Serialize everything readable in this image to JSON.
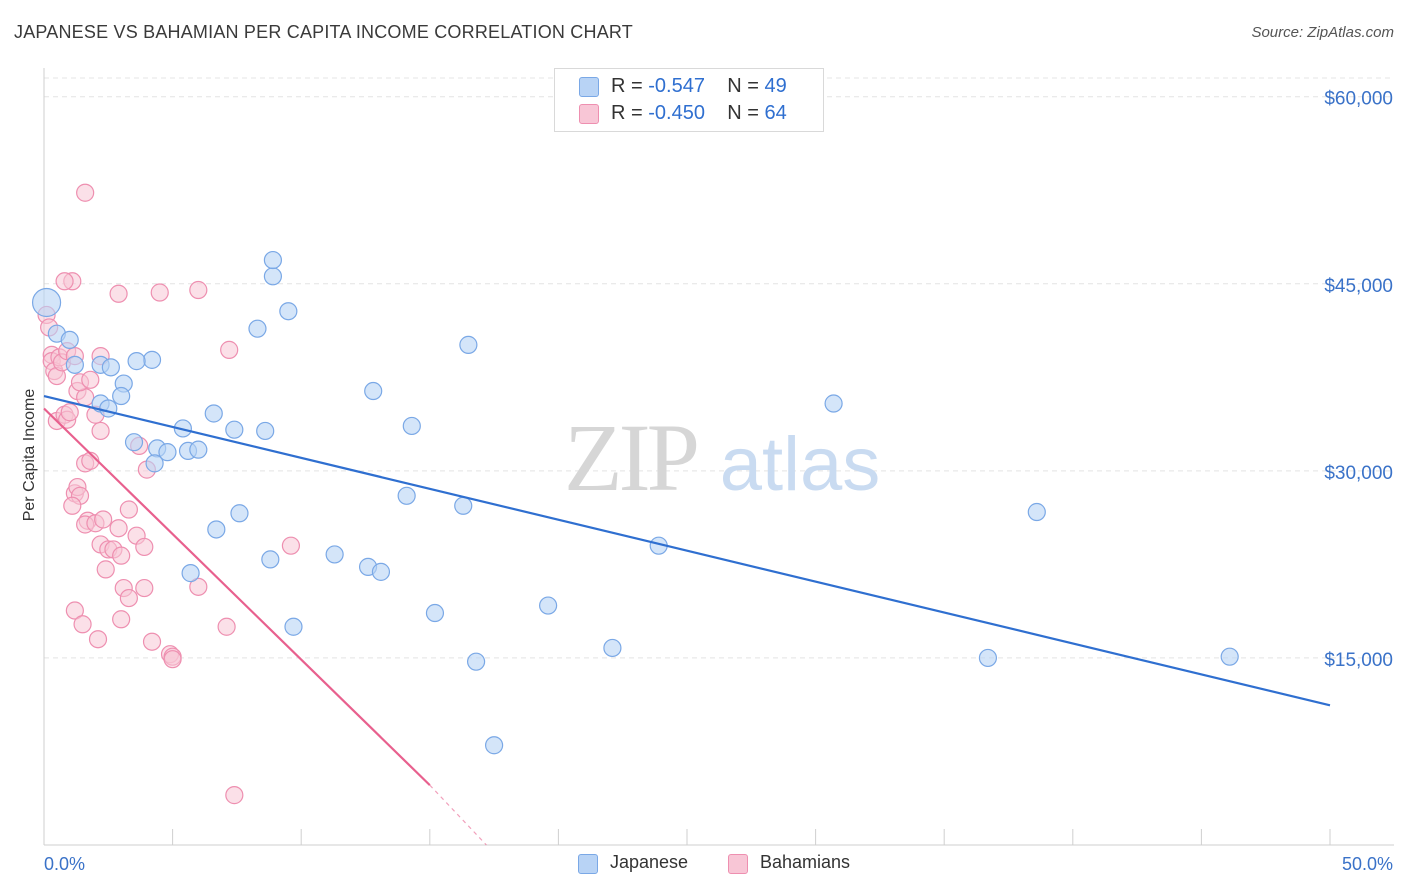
{
  "title": "JAPANESE VS BAHAMIAN PER CAPITA INCOME CORRELATION CHART",
  "source": "Source: ZipAtlas.com",
  "watermark": {
    "zip": "ZIP",
    "atlas": "atlas"
  },
  "legend_top": [
    {
      "r_label": "R =",
      "r_value": "-0.547",
      "n_label": "N =",
      "n_value": "49"
    },
    {
      "r_label": "R =",
      "r_value": "-0.450",
      "n_label": "N =",
      "n_value": "64"
    }
  ],
  "legend_bottom": [
    "Japanese",
    "Bahamians"
  ],
  "colors": {
    "japanese_fill": "#b8d3f5",
    "japanese_stroke": "#7aa8e6",
    "japanese_line": "#2f6fd0",
    "bahamian_fill": "#f8c6d6",
    "bahamian_stroke": "#ee8fb0",
    "bahamian_line": "#e8608e",
    "axis_label": "#3a72c8",
    "grid": "#e4e4e4"
  },
  "chart_data": {
    "type": "scatter",
    "title": "JAPANESE VS BAHAMIAN PER CAPITA INCOME CORRELATION CHART",
    "xlabel": "",
    "ylabel": "Per Capita Income",
    "xlim": [
      0,
      50
    ],
    "ylim": [
      0,
      61500
    ],
    "x_tick_labels": [
      "0.0%",
      "50.0%"
    ],
    "y_ticks": [
      15000,
      30000,
      45000,
      60000
    ],
    "y_tick_labels": [
      "$15,000",
      "$30,000",
      "$45,000",
      "$60,000"
    ],
    "grid": true,
    "legend": "top-center",
    "series": [
      {
        "name": "Japanese",
        "r": -0.547,
        "n": 49,
        "trend": [
          [
            0,
            36000
          ],
          [
            50,
            11200
          ]
        ],
        "points": [
          [
            0.1,
            43500
          ],
          [
            0.5,
            41000
          ],
          [
            1.0,
            40500
          ],
          [
            1.2,
            38500
          ],
          [
            2.2,
            38500
          ],
          [
            2.6,
            38300
          ],
          [
            3.1,
            37000
          ],
          [
            3.0,
            36000
          ],
          [
            2.2,
            35400
          ],
          [
            2.5,
            35000
          ],
          [
            4.2,
            38900
          ],
          [
            3.6,
            38800
          ],
          [
            3.5,
            32300
          ],
          [
            4.4,
            31800
          ],
          [
            4.3,
            30600
          ],
          [
            4.8,
            31500
          ],
          [
            5.6,
            31600
          ],
          [
            6.0,
            31700
          ],
          [
            5.4,
            33400
          ],
          [
            6.6,
            34600
          ],
          [
            7.4,
            33300
          ],
          [
            8.3,
            41400
          ],
          [
            8.9,
            45600
          ],
          [
            8.9,
            46900
          ],
          [
            9.5,
            42800
          ],
          [
            12.8,
            36400
          ],
          [
            14.3,
            33600
          ],
          [
            14.1,
            28000
          ],
          [
            16.5,
            40100
          ],
          [
            16.3,
            27200
          ],
          [
            6.7,
            25300
          ],
          [
            5.7,
            21800
          ],
          [
            7.6,
            26600
          ],
          [
            8.8,
            22900
          ],
          [
            9.7,
            17500
          ],
          [
            11.3,
            23300
          ],
          [
            12.6,
            22300
          ],
          [
            13.1,
            21900
          ],
          [
            15.2,
            18600
          ],
          [
            16.8,
            14700
          ],
          [
            19.6,
            19200
          ],
          [
            22.1,
            15800
          ],
          [
            23.9,
            24000
          ],
          [
            30.7,
            35400
          ],
          [
            36.7,
            15000
          ],
          [
            38.6,
            26700
          ],
          [
            46.1,
            15100
          ],
          [
            17.5,
            8000
          ],
          [
            8.6,
            33200
          ]
        ]
      },
      {
        "name": "Bahamians",
        "r": -0.45,
        "n": 64,
        "trend": [
          [
            0,
            35000
          ],
          [
            15,
            4800
          ]
        ],
        "trend_dashed": [
          [
            15,
            4800
          ],
          [
            17.2,
            0
          ]
        ],
        "points": [
          [
            0.1,
            42500
          ],
          [
            0.2,
            41500
          ],
          [
            0.3,
            39300
          ],
          [
            0.3,
            38800
          ],
          [
            0.4,
            38000
          ],
          [
            0.5,
            37600
          ],
          [
            0.6,
            39100
          ],
          [
            0.7,
            38700
          ],
          [
            0.9,
            39600
          ],
          [
            1.2,
            39200
          ],
          [
            0.5,
            34000
          ],
          [
            0.8,
            34500
          ],
          [
            0.9,
            34100
          ],
          [
            1.0,
            34700
          ],
          [
            1.3,
            36400
          ],
          [
            1.6,
            35900
          ],
          [
            1.4,
            37100
          ],
          [
            1.8,
            37300
          ],
          [
            2.2,
            39200
          ],
          [
            1.6,
            30600
          ],
          [
            1.8,
            30800
          ],
          [
            1.2,
            28200
          ],
          [
            1.3,
            28700
          ],
          [
            1.4,
            28000
          ],
          [
            1.1,
            27200
          ],
          [
            1.7,
            26000
          ],
          [
            1.6,
            25700
          ],
          [
            2.0,
            25800
          ],
          [
            2.3,
            26100
          ],
          [
            2.2,
            24100
          ],
          [
            2.5,
            23700
          ],
          [
            2.7,
            23700
          ],
          [
            2.4,
            22100
          ],
          [
            3.0,
            23200
          ],
          [
            2.9,
            25400
          ],
          [
            3.3,
            26900
          ],
          [
            3.6,
            24800
          ],
          [
            3.9,
            23900
          ],
          [
            1.2,
            18800
          ],
          [
            1.5,
            17700
          ],
          [
            2.1,
            16500
          ],
          [
            3.0,
            18100
          ],
          [
            3.1,
            20600
          ],
          [
            3.3,
            19800
          ],
          [
            3.9,
            20600
          ],
          [
            4.2,
            16300
          ],
          [
            4.9,
            15300
          ],
          [
            5.0,
            15100
          ],
          [
            5.0,
            14900
          ],
          [
            6.0,
            20700
          ],
          [
            7.1,
            17500
          ],
          [
            9.6,
            24000
          ],
          [
            7.2,
            39700
          ],
          [
            6.0,
            44500
          ],
          [
            4.5,
            44300
          ],
          [
            2.9,
            44200
          ],
          [
            1.1,
            45200
          ],
          [
            0.8,
            45200
          ],
          [
            1.6,
            52300
          ],
          [
            2.2,
            33200
          ],
          [
            3.7,
            32000
          ],
          [
            4.0,
            30100
          ],
          [
            2.0,
            34500
          ],
          [
            7.4,
            4000
          ]
        ]
      }
    ]
  }
}
